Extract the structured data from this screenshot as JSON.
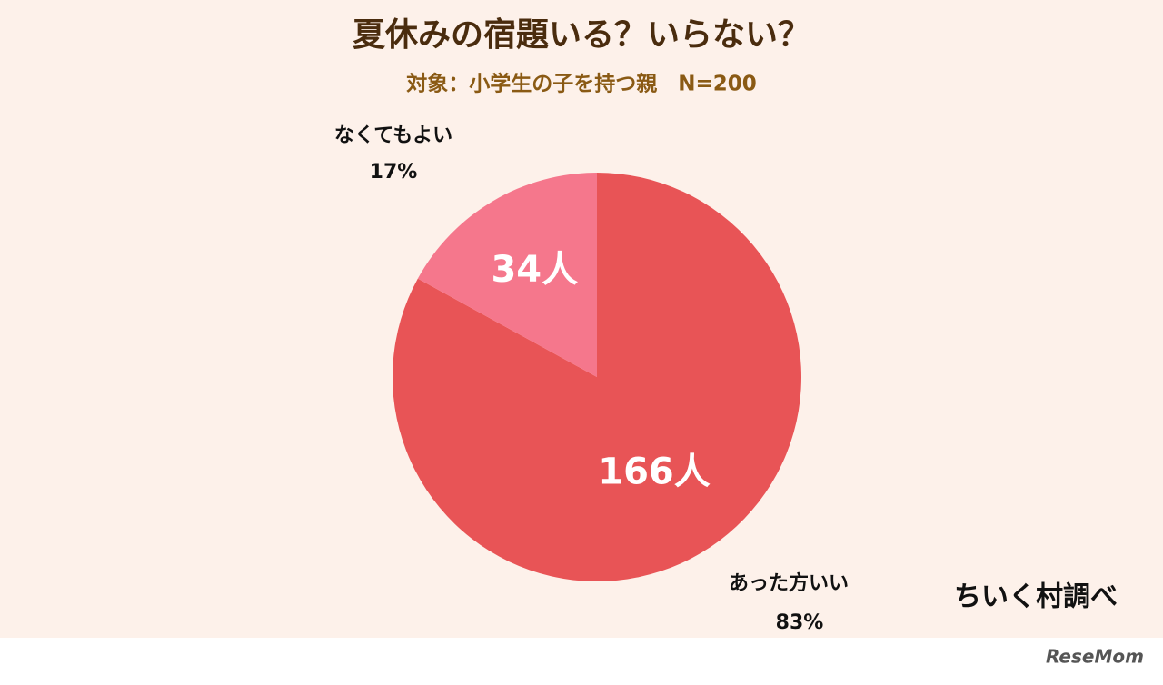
{
  "chart_data": {
    "type": "pie",
    "title": "夏休みの宿題いる？いらない？",
    "subtitle": "対象：小学生の子を持つ親　N=200",
    "categories": [
      "あった方いい",
      "なくてもよい"
    ],
    "values": [
      166,
      34
    ],
    "value_labels": [
      "166人",
      "34人"
    ],
    "percents": [
      83,
      17
    ],
    "percent_labels": [
      "83%",
      "17%"
    ],
    "colors": [
      "#e85456",
      "#f5778c"
    ],
    "source": "ちいく村調べ"
  },
  "watermark": "ReseMom"
}
